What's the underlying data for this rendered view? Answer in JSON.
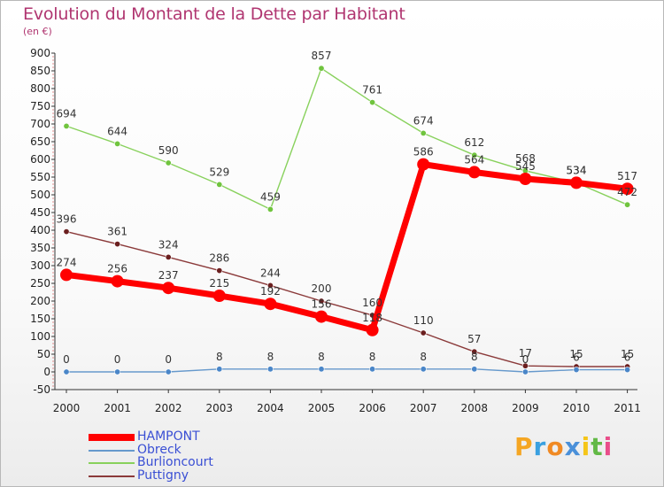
{
  "chart_data": {
    "type": "line",
    "title": "Evolution du Montant de la Dette par Habitant",
    "subtitle": "(en €)",
    "categories": [
      "2000",
      "2001",
      "2002",
      "2003",
      "2004",
      "2005",
      "2006",
      "2007",
      "2008",
      "2009",
      "2010",
      "2011"
    ],
    "ylim": [
      -50,
      900
    ],
    "yticks": [
      -50,
      0,
      50,
      100,
      150,
      200,
      250,
      300,
      350,
      400,
      450,
      500,
      550,
      600,
      650,
      700,
      750,
      800,
      850,
      900
    ],
    "grid": false,
    "legend_position": "bottom-left",
    "series": [
      {
        "name": "Burlioncourt",
        "color": "#88d15c",
        "marker": "#70c43e",
        "values": [
          694,
          644,
          590,
          529,
          459,
          857,
          761,
          674,
          612,
          568,
          534,
          472
        ],
        "labels": [
          "694",
          "644",
          "590",
          "529",
          "459",
          "857",
          "761",
          "674",
          "612",
          "568",
          "534",
          "472"
        ]
      },
      {
        "name": "Puttigny",
        "color": "#8b3a3a",
        "marker": "#6b1f1f",
        "values": [
          396,
          361,
          324,
          286,
          244,
          200,
          160,
          110,
          57,
          17,
          15,
          15
        ],
        "labels": [
          "396",
          "361",
          "324",
          "286",
          "244",
          "200",
          "160",
          "110",
          "57",
          "17",
          "15",
          "15"
        ]
      },
      {
        "name": "Obreck",
        "color": "#6699cc",
        "marker": "#4a86c8",
        "values": [
          0,
          0,
          0,
          8,
          8,
          8,
          8,
          8,
          8,
          0,
          6,
          6
        ],
        "labels": [
          "0",
          "0",
          "0",
          "8",
          "8",
          "8",
          "8",
          "8",
          "8",
          "0",
          "6",
          "6"
        ]
      },
      {
        "name": "HAMPONT",
        "color": "#ff0000",
        "marker": "#ff0000",
        "values": [
          274,
          256,
          237,
          215,
          192,
          156,
          118,
          586,
          564,
          545,
          534,
          517
        ],
        "labels": [
          "274",
          "256",
          "237",
          "215",
          "192",
          "156",
          "118",
          "586",
          "564",
          "545",
          "534",
          "517"
        ]
      }
    ],
    "legend": [
      "HAMPONT",
      "Obreck",
      "Burlioncourt",
      "Puttigny"
    ]
  },
  "logo": {
    "letters": [
      "P",
      "r",
      "o",
      "x",
      "i",
      "t",
      "i"
    ],
    "colors": [
      "#f5a623",
      "#3aa0e0",
      "#f08a24",
      "#4a90d9",
      "#f5c518",
      "#62b946",
      "#e94e8a"
    ]
  }
}
